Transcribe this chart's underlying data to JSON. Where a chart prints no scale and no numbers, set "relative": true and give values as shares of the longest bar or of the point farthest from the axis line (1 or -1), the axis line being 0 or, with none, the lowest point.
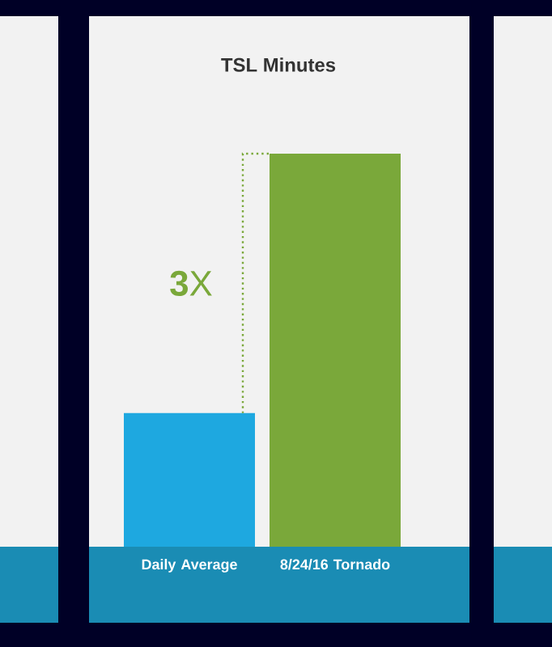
{
  "chart_data": {
    "type": "bar",
    "title": "TSL Minutes",
    "categories": [
      "Daily Average",
      "8/24/16 Tornado"
    ],
    "values": [
      0.34,
      1
    ],
    "colors": [
      "#1ea8e0",
      "#7aa83a"
    ],
    "relative": true,
    "annotations": [
      "**3**X"
    ]
  }
}
